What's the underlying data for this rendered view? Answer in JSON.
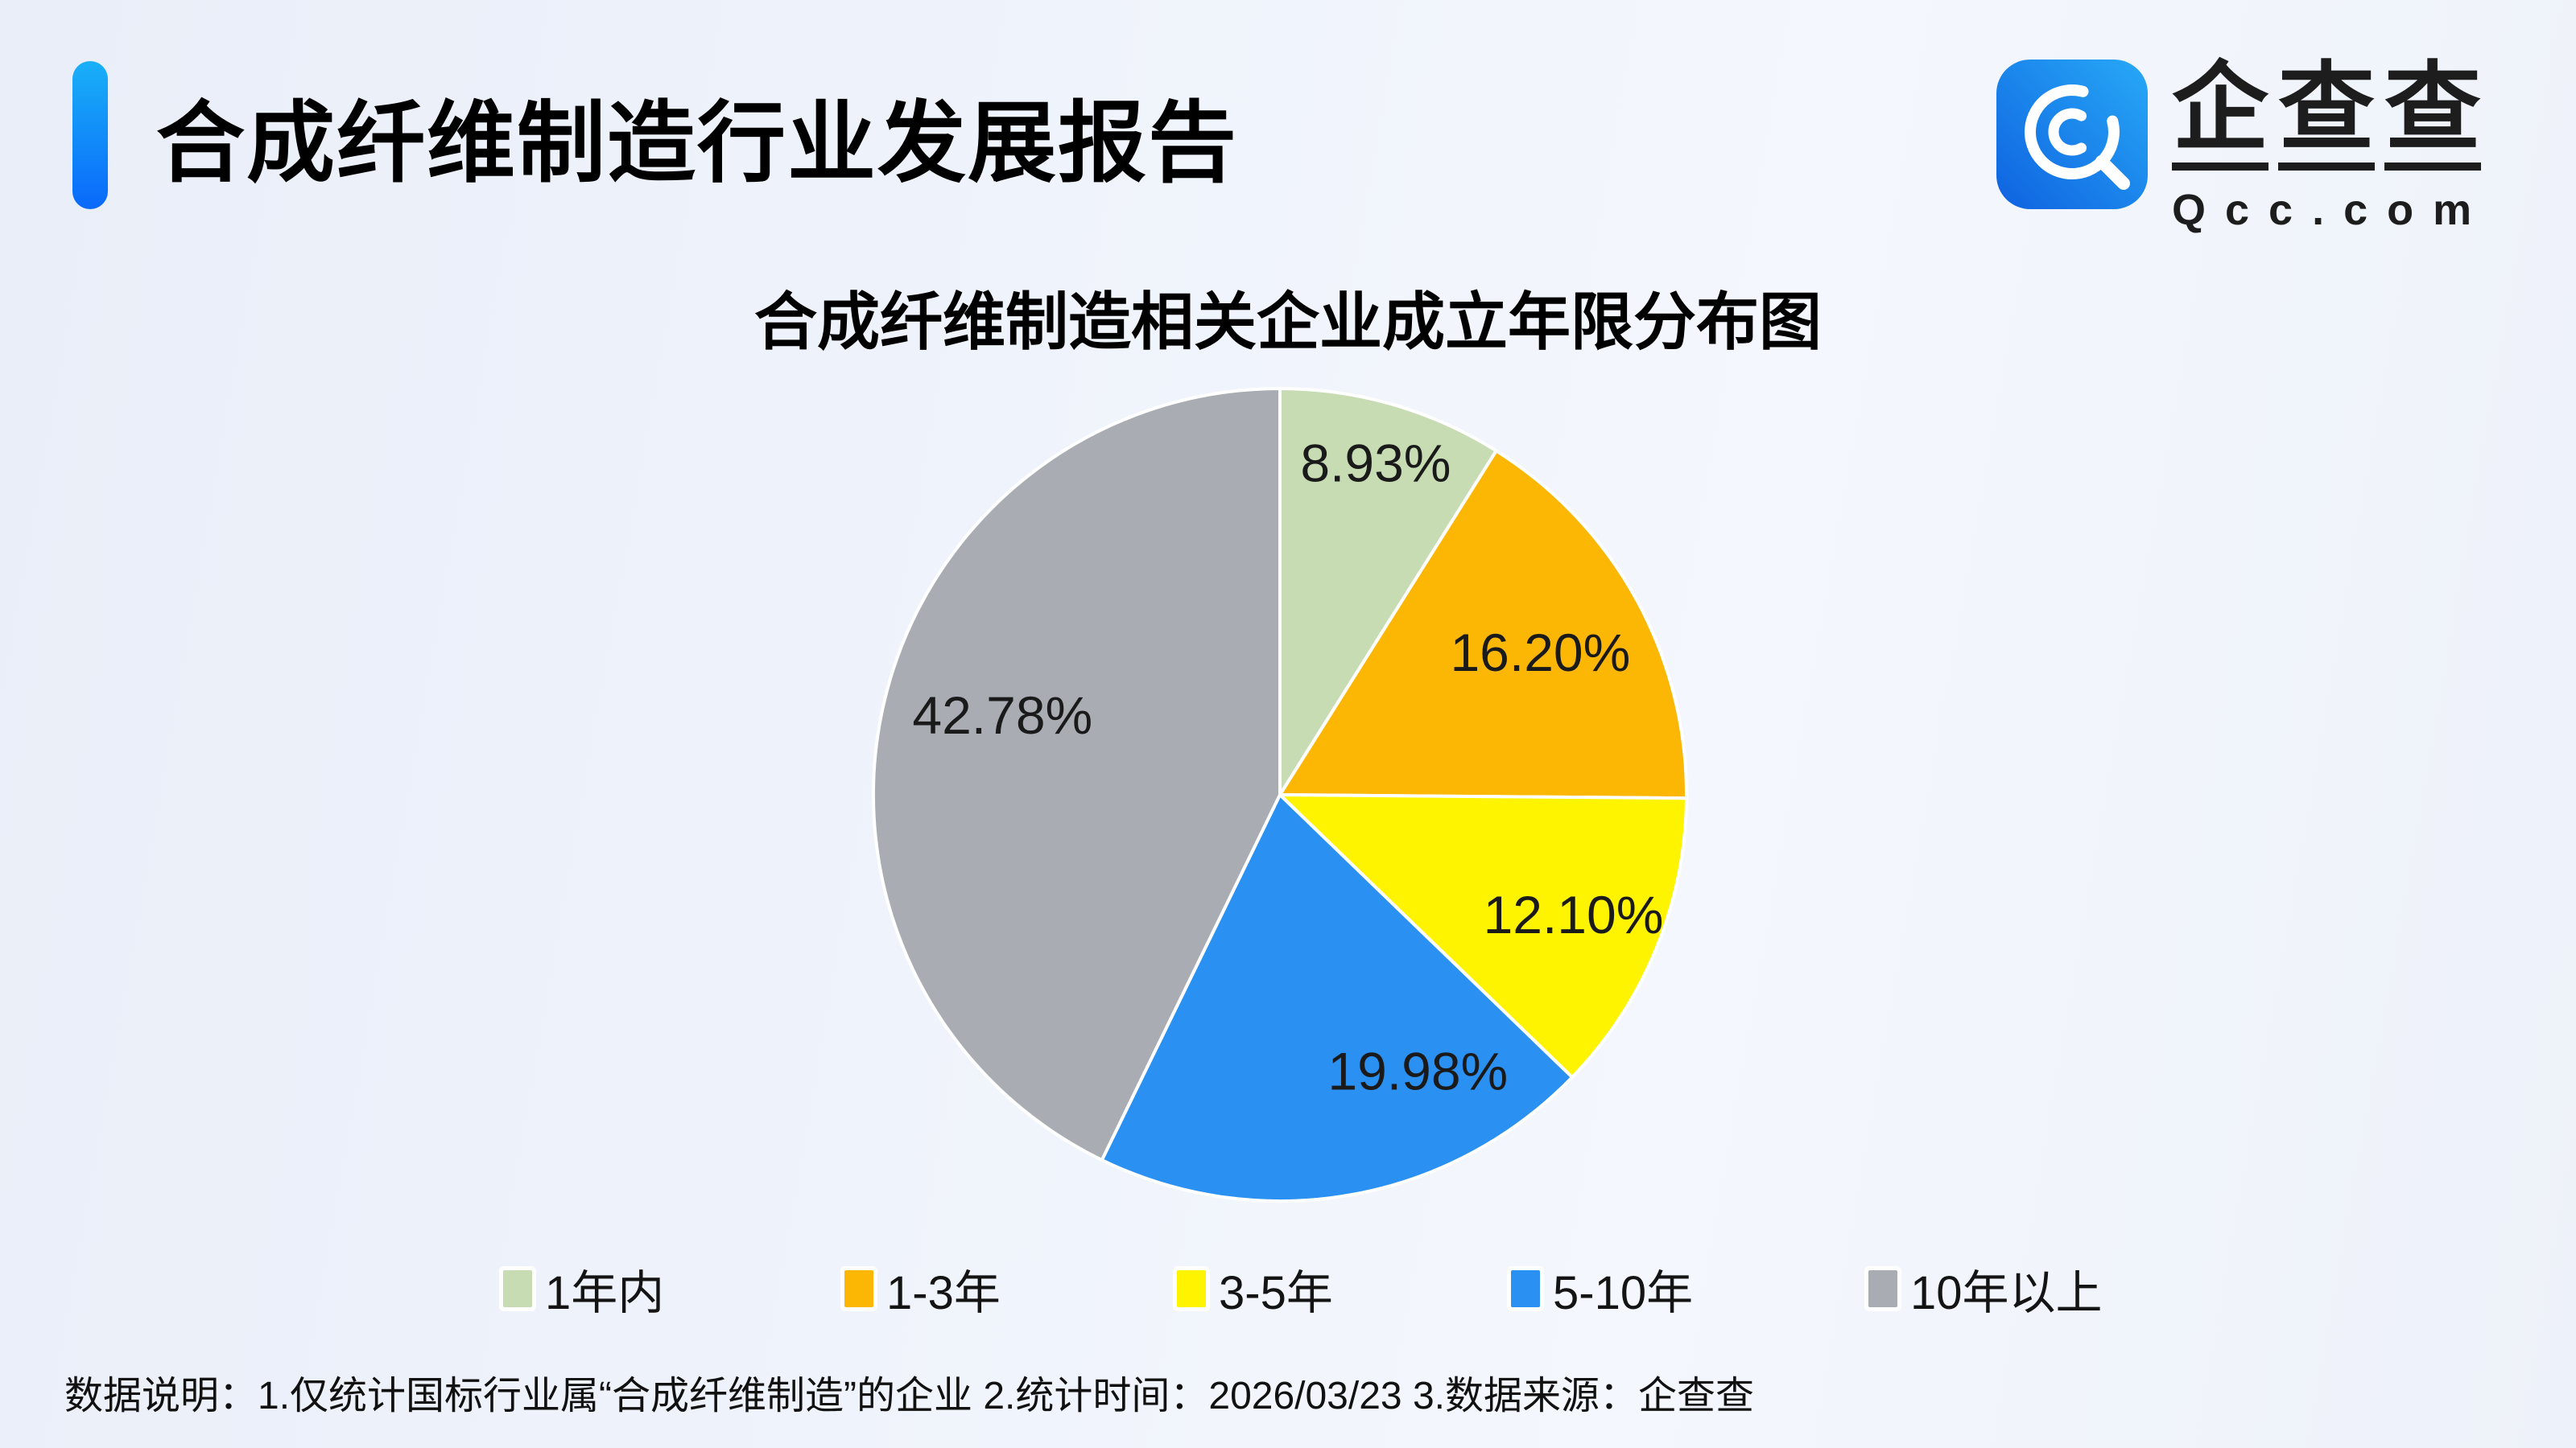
{
  "header": {
    "title": "合成纤维制造行业发展报告",
    "logo": {
      "brand": "企查查",
      "domain": "Qcc.com"
    }
  },
  "chart_data": {
    "type": "pie",
    "title": "合成纤维制造相关企业成立年限分布图",
    "categories": [
      "1年内",
      "1-3年",
      "3-5年",
      "5-10年",
      "10年以上"
    ],
    "values": [
      8.93,
      16.2,
      12.1,
      19.98,
      42.78
    ],
    "labels": [
      "8.93%",
      "16.20%",
      "12.10%",
      "19.98%",
      "42.78%"
    ],
    "colors": [
      "#c8dcb4",
      "#fcb705",
      "#fef400",
      "#2a90f2",
      "#a9acb2"
    ],
    "unit": "%",
    "start_angle_deg": 0,
    "direction": "clockwise",
    "label_position": "inside",
    "legend_position": "bottom"
  },
  "footer": {
    "note": "数据说明：1.仅统计国标行业属“合成纤维制造”的企业  2.统计时间：2026/03/23  3.数据来源：企查查"
  },
  "theme": {
    "accent_bar_gradient": [
      "#19b0f8",
      "#0a69fa"
    ],
    "logo_icon_gradient": [
      "#0f62e0",
      "#27a9f7"
    ],
    "pie_separator": "#ffffff",
    "text_color": "#1a1a1a"
  }
}
